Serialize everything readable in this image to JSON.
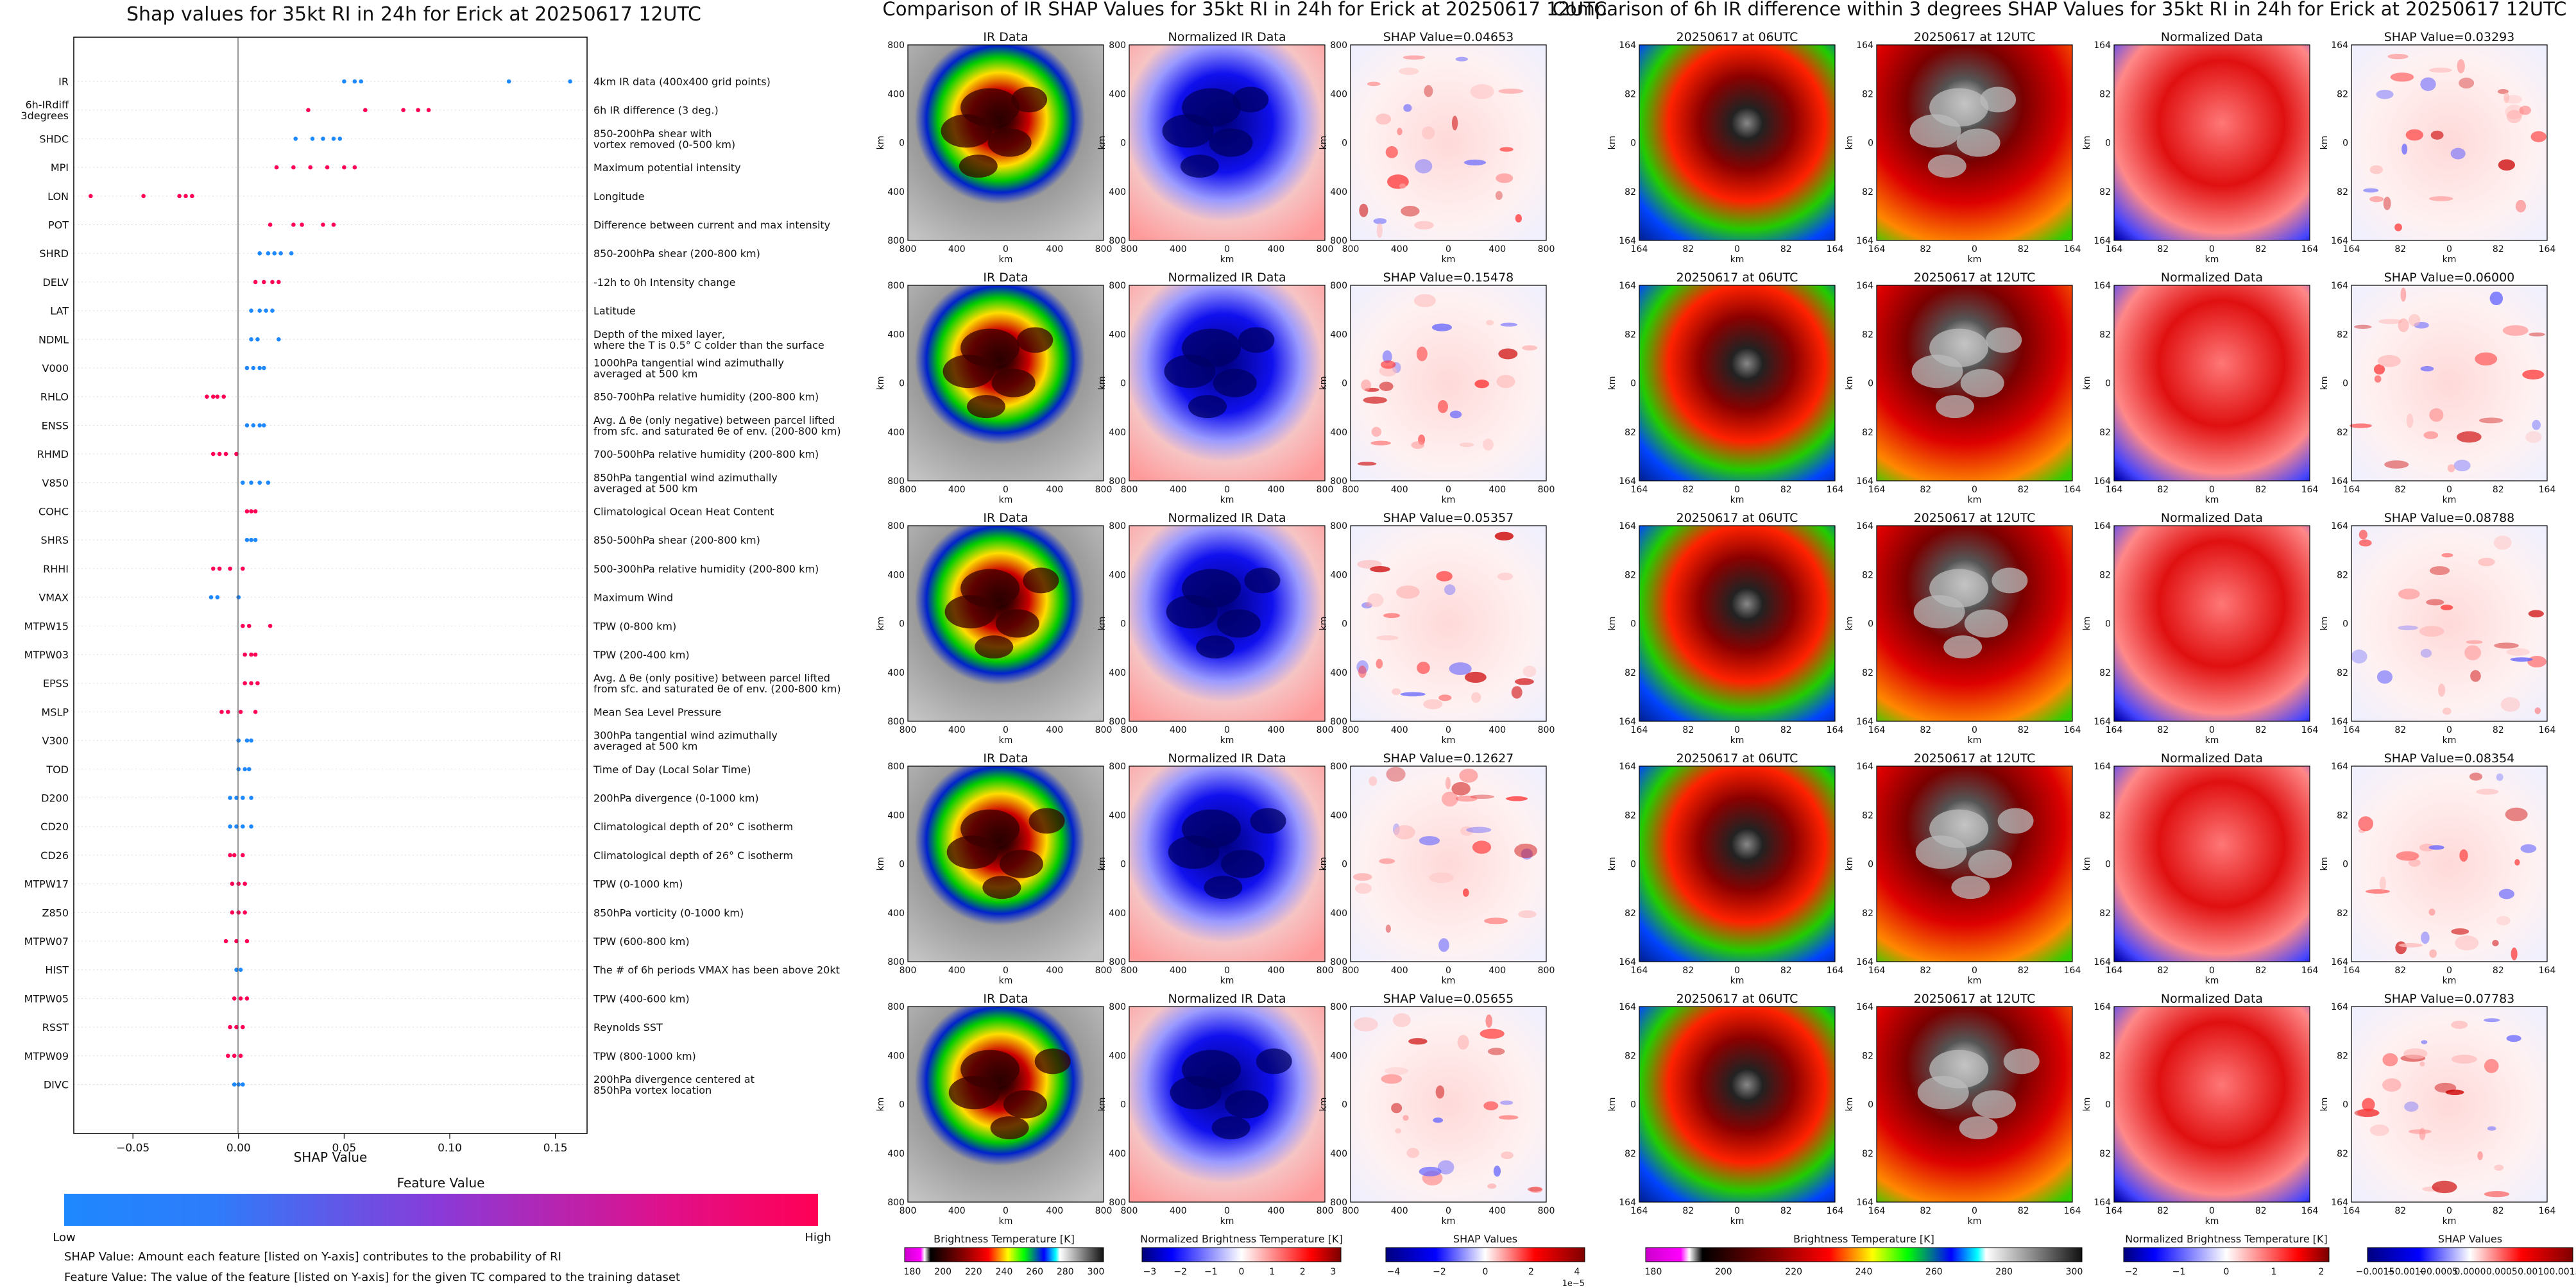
{
  "shap_summary": {
    "title": "Shap values for 35kt RI in 24h for Erick at 20250617 12UTC",
    "xlabel": "SHAP Value",
    "x_ticks": [
      "−0.05",
      "0.00",
      "0.05",
      "0.10",
      "0.15"
    ],
    "colorbar_title": "Feature Value",
    "colorbar_low": "Low",
    "colorbar_high": "High",
    "note1": "SHAP Value: Amount each feature [listed on Y-axis] contributes to the probability of RI",
    "note2": "Feature Value: The value of the feature [listed on Y-axis] for the given TC compared to the training dataset"
  },
  "ir_section": {
    "title": "Comparison of IR SHAP Values for 35kt RI in 24h for Erick at 20250617 12UTC",
    "col_titles": [
      "IR Data",
      "Normalized IR Data"
    ],
    "shap_titles": [
      "SHAP Value=0.04653",
      "SHAP Value=0.15478",
      "SHAP Value=0.05357",
      "SHAP Value=0.12627",
      "SHAP Value=0.05655"
    ],
    "axis_label": "km",
    "ticks": [
      "800",
      "400",
      "0",
      "400",
      "800"
    ],
    "colorbars": [
      {
        "label": "Brightness Temperature [K]",
        "ticks": [
          "180",
          "200",
          "220",
          "240",
          "260",
          "280",
          "300"
        ]
      },
      {
        "label": "Normalized Brightness Temperature [K]",
        "ticks": [
          "−3",
          "−2",
          "−1",
          "0",
          "1",
          "2",
          "3"
        ]
      },
      {
        "label": "SHAP Values",
        "ticks": [
          "−4",
          "−2",
          "0",
          "2",
          "4"
        ],
        "exponent": "1e−5"
      }
    ]
  },
  "diff_section": {
    "title": "Comparison of 6h IR difference within 3 degrees SHAP Values for 35kt RI in 24h for Erick at 20250617 12UTC",
    "col_titles": [
      "20250617 at 06UTC",
      "20250617 at 12UTC",
      "Normalized Data"
    ],
    "shap_titles": [
      "SHAP Value=0.03293",
      "SHAP Value=0.06000",
      "SHAP Value=0.08788",
      "SHAP Value=0.08354",
      "SHAP Value=0.07783"
    ],
    "axis_label": "km",
    "ticks": [
      "164",
      "82",
      "0",
      "82",
      "164"
    ],
    "colorbars": [
      {
        "label": "Brightness Temperature [K]",
        "ticks": [
          "180",
          "200",
          "220",
          "240",
          "260",
          "280",
          "300"
        ]
      },
      {
        "label": "Normalized Brightness Temperature [K]",
        "ticks": [
          "−2",
          "−1",
          "0",
          "1",
          "2"
        ]
      },
      {
        "label": "SHAP Values",
        "ticks": [
          "−0.0015",
          "−0.0010",
          "−0.0005",
          "0.0000",
          "0.0005",
          "0.0010",
          "0.0015"
        ]
      }
    ]
  },
  "chart_data": [
    {
      "type": "scatter",
      "title": "Shap values for 35kt RI in 24h for Erick at 20250617 12UTC",
      "xlabel": "SHAP Value",
      "xlim": [
        -0.078,
        0.165
      ],
      "color_scale": {
        "low": "#1e88ff",
        "high": "#ff0055"
      },
      "features": [
        {
          "name": "IR",
          "desc": "4km IR data (400x400 grid points)",
          "points": [
            [
              0.05,
              0
            ],
            [
              0.055,
              0
            ],
            [
              0.058,
              0
            ],
            [
              0.128,
              0
            ],
            [
              0.157,
              0
            ]
          ]
        },
        {
          "name": "6h-IRdiff\n3degrees",
          "desc": "6h IR difference (3 deg.)",
          "points": [
            [
              0.033,
              1
            ],
            [
              0.06,
              1
            ],
            [
              0.078,
              1
            ],
            [
              0.085,
              1
            ],
            [
              0.09,
              1
            ]
          ]
        },
        {
          "name": "SHDC",
          "desc": "850-200hPa shear with\nvortex removed (0-500 km)",
          "points": [
            [
              0.027,
              0
            ],
            [
              0.035,
              0
            ],
            [
              0.04,
              0
            ],
            [
              0.045,
              0
            ],
            [
              0.048,
              0
            ]
          ]
        },
        {
          "name": "MPI",
          "desc": "Maximum potential intensity",
          "points": [
            [
              0.018,
              1
            ],
            [
              0.026,
              1
            ],
            [
              0.034,
              1
            ],
            [
              0.042,
              1
            ],
            [
              0.05,
              1
            ],
            [
              0.055,
              1
            ]
          ]
        },
        {
          "name": "LON",
          "desc": "Longitude",
          "points": [
            [
              -0.07,
              1
            ],
            [
              -0.045,
              1
            ],
            [
              -0.028,
              1
            ],
            [
              -0.025,
              1
            ],
            [
              -0.022,
              1
            ]
          ]
        },
        {
          "name": "POT",
          "desc": "Difference between current and max intensity",
          "points": [
            [
              0.015,
              1
            ],
            [
              0.026,
              1
            ],
            [
              0.03,
              1
            ],
            [
              0.04,
              1
            ],
            [
              0.045,
              1
            ]
          ]
        },
        {
          "name": "SHRD",
          "desc": "850-200hPa shear (200-800 km)",
          "points": [
            [
              0.01,
              0
            ],
            [
              0.014,
              0
            ],
            [
              0.017,
              0
            ],
            [
              0.02,
              0
            ],
            [
              0.025,
              0
            ]
          ]
        },
        {
          "name": "DELV",
          "desc": "-12h to 0h Intensity change",
          "points": [
            [
              0.008,
              1
            ],
            [
              0.012,
              1
            ],
            [
              0.016,
              1
            ],
            [
              0.019,
              1
            ]
          ]
        },
        {
          "name": "LAT",
          "desc": "Latitude",
          "points": [
            [
              0.006,
              0
            ],
            [
              0.01,
              0
            ],
            [
              0.013,
              0
            ],
            [
              0.016,
              0
            ]
          ]
        },
        {
          "name": "NDML",
          "desc": "Depth of the mixed layer,\nwhere the T is 0.5° C colder than the surface",
          "points": [
            [
              0.006,
              0
            ],
            [
              0.009,
              0
            ],
            [
              0.019,
              0
            ]
          ]
        },
        {
          "name": "V000",
          "desc": "1000hPa tangential wind azimuthally\naveraged at 500 km",
          "points": [
            [
              0.004,
              0
            ],
            [
              0.007,
              0
            ],
            [
              0.01,
              0
            ],
            [
              0.012,
              0
            ]
          ]
        },
        {
          "name": "RHLO",
          "desc": "850-700hPa relative humidity (200-800 km)",
          "points": [
            [
              -0.015,
              1
            ],
            [
              -0.012,
              1
            ],
            [
              -0.01,
              1
            ],
            [
              -0.007,
              1
            ]
          ]
        },
        {
          "name": "ENSS",
          "desc": "Avg. Δ θe (only negative) between parcel lifted\nfrom sfc. and saturated θe of env. (200-800 km)",
          "points": [
            [
              0.004,
              0
            ],
            [
              0.007,
              0
            ],
            [
              0.01,
              0
            ],
            [
              0.012,
              0
            ]
          ]
        },
        {
          "name": "RHMD",
          "desc": "700-500hPa relative humidity (200-800 km)",
          "points": [
            [
              -0.012,
              1
            ],
            [
              -0.009,
              1
            ],
            [
              -0.006,
              1
            ],
            [
              -0.001,
              1
            ]
          ]
        },
        {
          "name": "V850",
          "desc": "850hPa tangential wind azimuthally\naveraged at 500 km",
          "points": [
            [
              0.002,
              0
            ],
            [
              0.006,
              0
            ],
            [
              0.01,
              0
            ],
            [
              0.014,
              0
            ]
          ]
        },
        {
          "name": "COHC",
          "desc": "Climatological Ocean Heat Content",
          "points": [
            [
              0.004,
              1
            ],
            [
              0.006,
              1
            ],
            [
              0.008,
              1
            ]
          ]
        },
        {
          "name": "SHRS",
          "desc": "850-500hPa shear (200-800 km)",
          "points": [
            [
              0.004,
              0
            ],
            [
              0.006,
              0
            ],
            [
              0.008,
              0
            ]
          ]
        },
        {
          "name": "RHHI",
          "desc": "500-300hPa relative humidity (200-800 km)",
          "points": [
            [
              -0.012,
              1
            ],
            [
              -0.009,
              1
            ],
            [
              -0.004,
              1
            ],
            [
              0.002,
              1
            ]
          ]
        },
        {
          "name": "VMAX",
          "desc": "Maximum Wind",
          "points": [
            [
              -0.013,
              0
            ],
            [
              -0.01,
              0
            ],
            [
              0.0,
              0
            ]
          ]
        },
        {
          "name": "MTPW15",
          "desc": "TPW (0-800 km)",
          "points": [
            [
              0.002,
              1
            ],
            [
              0.005,
              1
            ],
            [
              0.015,
              1
            ]
          ]
        },
        {
          "name": "MTPW03",
          "desc": "TPW (200-400 km)",
          "points": [
            [
              0.003,
              1
            ],
            [
              0.006,
              1
            ],
            [
              0.008,
              1
            ]
          ]
        },
        {
          "name": "EPSS",
          "desc": "Avg. Δ θe (only positive) between parcel lifted\nfrom sfc. and saturated θe of env. (200-800 km)",
          "points": [
            [
              0.003,
              1
            ],
            [
              0.006,
              1
            ],
            [
              0.009,
              1
            ]
          ]
        },
        {
          "name": "MSLP",
          "desc": "Mean Sea Level Pressure",
          "points": [
            [
              -0.008,
              1
            ],
            [
              -0.005,
              1
            ],
            [
              0.001,
              1
            ],
            [
              0.008,
              1
            ]
          ]
        },
        {
          "name": "V300",
          "desc": "300hPa tangential wind azimuthally\naveraged at 500 km",
          "points": [
            [
              0.0,
              0
            ],
            [
              0.004,
              0
            ],
            [
              0.006,
              0
            ]
          ]
        },
        {
          "name": "TOD",
          "desc": "Time of Day (Local Solar Time)",
          "points": [
            [
              0.0,
              0
            ],
            [
              0.003,
              0
            ],
            [
              0.005,
              0
            ]
          ]
        },
        {
          "name": "D200",
          "desc": "200hPa divergence (0-1000 km)",
          "points": [
            [
              -0.004,
              0
            ],
            [
              -0.001,
              0
            ],
            [
              0.002,
              0
            ],
            [
              0.006,
              0
            ]
          ]
        },
        {
          "name": "CD20",
          "desc": "Climatological depth of 20° C isotherm",
          "points": [
            [
              -0.004,
              0
            ],
            [
              -0.001,
              0
            ],
            [
              0.002,
              0
            ],
            [
              0.006,
              0
            ]
          ]
        },
        {
          "name": "CD26",
          "desc": "Climatological depth of 26° C isotherm",
          "points": [
            [
              -0.004,
              1
            ],
            [
              -0.002,
              1
            ],
            [
              0.002,
              1
            ]
          ]
        },
        {
          "name": "MTPW17",
          "desc": "TPW (0-1000 km)",
          "points": [
            [
              -0.003,
              1
            ],
            [
              0.0,
              1
            ],
            [
              0.003,
              1
            ]
          ]
        },
        {
          "name": "Z850",
          "desc": "850hPa vorticity (0-1000 km)",
          "points": [
            [
              -0.003,
              1
            ],
            [
              0.0,
              1
            ],
            [
              0.003,
              1
            ]
          ]
        },
        {
          "name": "MTPW07",
          "desc": "TPW (600-800 km)",
          "points": [
            [
              -0.006,
              1
            ],
            [
              -0.001,
              1
            ],
            [
              0.004,
              1
            ]
          ]
        },
        {
          "name": "HIST",
          "desc": "The # of 6h periods VMAX has been above 20kt",
          "points": [
            [
              -0.001,
              0
            ],
            [
              0.001,
              0
            ]
          ]
        },
        {
          "name": "MTPW05",
          "desc": "TPW (400-600 km)",
          "points": [
            [
              -0.002,
              1
            ],
            [
              0.001,
              1
            ],
            [
              0.004,
              1
            ]
          ]
        },
        {
          "name": "RSST",
          "desc": "Reynolds SST",
          "points": [
            [
              -0.004,
              1
            ],
            [
              -0.001,
              1
            ],
            [
              0.002,
              1
            ]
          ]
        },
        {
          "name": "MTPW09",
          "desc": "TPW (800-1000 km)",
          "points": [
            [
              -0.005,
              1
            ],
            [
              -0.002,
              1
            ],
            [
              0.001,
              1
            ]
          ]
        },
        {
          "name": "DIVC",
          "desc": "200hPa divergence centered at\n850hPa vortex location",
          "points": [
            [
              -0.002,
              0
            ],
            [
              0.0,
              0
            ],
            [
              0.002,
              0
            ]
          ]
        }
      ]
    }
  ]
}
